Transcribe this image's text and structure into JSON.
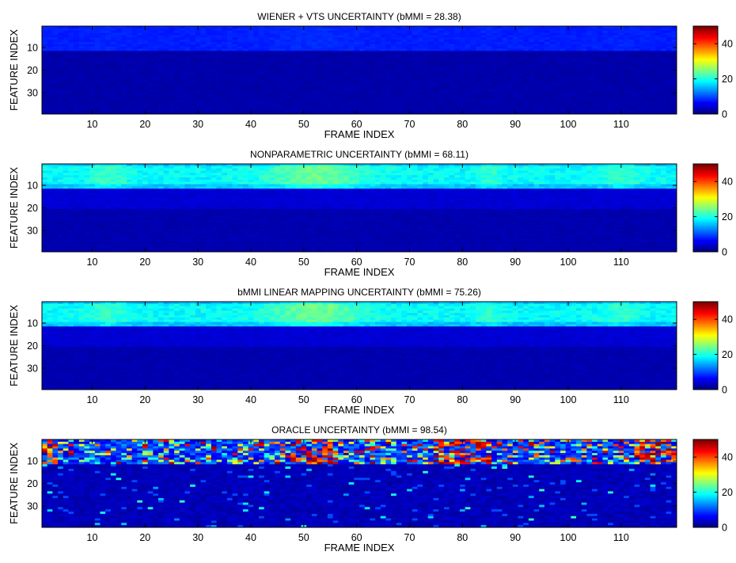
{
  "figure": {
    "colormap": "jet",
    "grid": false,
    "panels": [
      {
        "id": "wiener",
        "title": "WIENER + VTS UNCERTAINTY (bMMI = 28.38)",
        "xlabel": "FRAME INDEX",
        "ylabel": "FEATURE INDEX",
        "pattern": "wiener"
      },
      {
        "id": "nonparametric",
        "title": "NONPARAMETRIC UNCERTAINTY (bMMI = 68.11)",
        "xlabel": "FRAME INDEX",
        "ylabel": "FEATURE INDEX",
        "pattern": "band"
      },
      {
        "id": "bmmi-linear",
        "title": "bMMI LINEAR MAPPING  UNCERTAINTY (bMMI = 75.26)",
        "xlabel": "FRAME INDEX",
        "ylabel": "FEATURE INDEX",
        "pattern": "band"
      },
      {
        "id": "oracle",
        "title": "ORACLE UNCERTAINTY (bMMI = 98.54)",
        "xlabel": "FRAME INDEX",
        "ylabel": "FEATURE INDEX",
        "pattern": "oracle"
      }
    ]
  },
  "chart_data": {
    "type": "heatmap",
    "x_range": [
      1,
      120
    ],
    "y_range": [
      1,
      39
    ],
    "x_ticks": [
      10,
      20,
      30,
      40,
      50,
      60,
      70,
      80,
      90,
      100,
      110
    ],
    "y_ticks": [
      10,
      20,
      30
    ],
    "y_direction": "reversed",
    "color_range": [
      0,
      50
    ],
    "colorbar_ticks": [
      0,
      20,
      40
    ],
    "colorbar_placement": "right"
  }
}
